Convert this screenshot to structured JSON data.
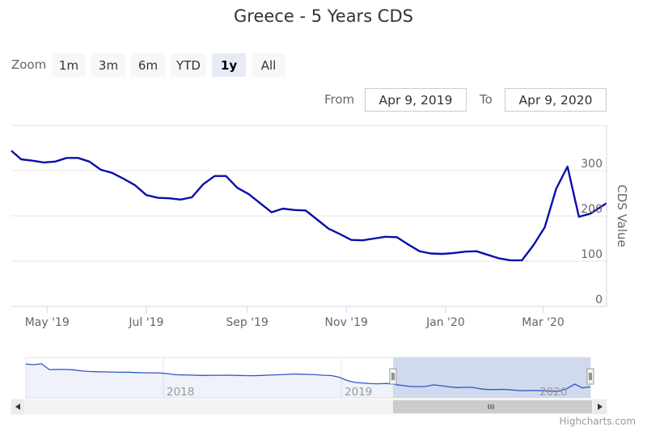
{
  "title": "Greece - 5 Years CDS",
  "zoom": {
    "label": "Zoom",
    "buttons": [
      "1m",
      "3m",
      "6m",
      "YTD",
      "1y",
      "All"
    ],
    "selected": "1y"
  },
  "range": {
    "from_label": "From",
    "from_value": "Apr 9, 2019",
    "to_label": "To",
    "to_value": "Apr 9, 2020"
  },
  "credits": "Highcharts.com",
  "colors": {
    "series": "#0a0dae",
    "navigator_series": "#3355cc",
    "navigator_mask": "#ccd6eb",
    "grid": "#e6e6e6"
  },
  "chart_data": {
    "type": "line",
    "title": "Greece - 5 Years CDS",
    "ylabel": "CDS Value",
    "ylim": [
      0,
      400
    ],
    "yticks": [
      "0",
      "100",
      "200",
      "300"
    ],
    "xlim": [
      "2019-04-09",
      "2020-04-09"
    ],
    "xticks": [
      "May '19",
      "Jul '19",
      "Sep '19",
      "Nov '19",
      "Jan '20",
      "Mar '20"
    ],
    "series": [
      {
        "x": [
          "2019-04-09",
          "2019-04-15",
          "2019-04-22",
          "2019-04-29",
          "2019-05-06",
          "2019-05-13",
          "2019-05-20",
          "2019-05-27",
          "2019-06-03",
          "2019-06-10",
          "2019-06-17",
          "2019-06-24",
          "2019-07-01",
          "2019-07-08",
          "2019-07-15",
          "2019-07-22",
          "2019-07-29",
          "2019-08-05",
          "2019-08-12",
          "2019-08-19",
          "2019-08-26",
          "2019-09-02",
          "2019-09-09",
          "2019-09-16",
          "2019-09-23",
          "2019-09-30",
          "2019-10-07",
          "2019-10-14",
          "2019-10-21",
          "2019-10-28",
          "2019-11-04",
          "2019-11-11",
          "2019-11-18",
          "2019-11-25",
          "2019-12-02",
          "2019-12-09",
          "2019-12-16",
          "2019-12-23",
          "2019-12-30",
          "2020-01-06",
          "2020-01-13",
          "2020-01-20",
          "2020-01-27",
          "2020-02-03",
          "2020-02-10",
          "2020-02-17",
          "2020-02-24",
          "2020-03-02",
          "2020-03-09",
          "2020-03-16",
          "2020-03-23",
          "2020-03-30",
          "2020-04-09"
        ],
        "values": [
          344,
          325,
          322,
          318,
          320,
          328,
          328,
          320,
          302,
          295,
          282,
          268,
          246,
          240,
          239,
          236,
          241,
          270,
          288,
          288,
          262,
          248,
          228,
          208,
          216,
          213,
          212,
          192,
          172,
          160,
          147,
          146,
          150,
          154,
          153,
          137,
          122,
          117,
          116,
          118,
          121,
          122,
          114,
          106,
          102,
          102,
          135,
          175,
          260,
          309,
          198,
          205,
          228
        ]
      }
    ],
    "navigator": {
      "xticks": [
        "2018",
        "2019",
        "2020"
      ],
      "series": [
        {
          "values": [
            900,
            880,
            906,
            735,
            742,
            740,
            730,
            700,
            681,
            674,
            668,
            664,
            658,
            659,
            650,
            642,
            640,
            638,
            620,
            585,
            582,
            574,
            566,
            565,
            568,
            568,
            571,
            565,
            560,
            556,
            564,
            574,
            584,
            594,
            606,
            602,
            596,
            586,
            570,
            560,
            510,
            415,
            357,
            344,
            325,
            320,
            328,
            302,
            268,
            240,
            236,
            241,
            288,
            262,
            228,
            208,
            216,
            212,
            172,
            147,
            150,
            154,
            137,
            117,
            118,
            122,
            114,
            102,
            102,
            175,
            309,
            198,
            228
          ]
        }
      ],
      "ylim": [
        0,
        1000
      ],
      "selected_range": [
        "2019-04-09",
        "2020-04-09"
      ]
    }
  }
}
